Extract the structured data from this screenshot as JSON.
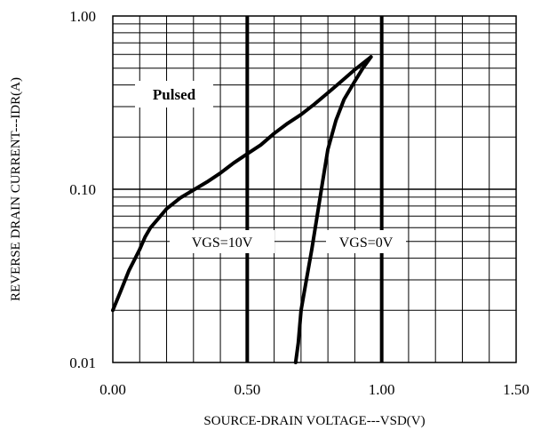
{
  "chart_data": {
    "type": "line",
    "xlabel": "SOURCE-DRAIN VOLTAGE---VSD(V)",
    "ylabel": "REVERSE DRAIN CURRENT---IDR(A)",
    "xlim": [
      0,
      1.5
    ],
    "ylim": [
      0.01,
      1.0
    ],
    "yscale": "log",
    "x_ticks": [
      "0.00",
      "0.50",
      "1.00",
      "1.50"
    ],
    "y_ticks": [
      "0.01",
      "0.10",
      "1.00"
    ],
    "grid": true,
    "series": [
      {
        "name": "VGS=10V",
        "x": [
          0.0,
          0.03,
          0.06,
          0.08,
          0.1,
          0.12,
          0.14,
          0.17,
          0.2,
          0.25,
          0.3,
          0.35,
          0.4,
          0.45,
          0.5,
          0.55,
          0.6,
          0.65,
          0.7,
          0.75,
          0.8,
          0.85,
          0.9,
          0.96
        ],
        "y": [
          0.02,
          0.026,
          0.034,
          0.039,
          0.045,
          0.053,
          0.06,
          0.068,
          0.077,
          0.089,
          0.099,
          0.11,
          0.124,
          0.142,
          0.16,
          0.18,
          0.21,
          0.24,
          0.27,
          0.31,
          0.36,
          0.42,
          0.49,
          0.58
        ]
      },
      {
        "name": "VGS=0V",
        "x": [
          0.68,
          0.69,
          0.7,
          0.72,
          0.74,
          0.76,
          0.78,
          0.8,
          0.83,
          0.86,
          0.9,
          0.93,
          0.96
        ],
        "y": [
          0.01,
          0.013,
          0.02,
          0.03,
          0.045,
          0.07,
          0.11,
          0.17,
          0.25,
          0.33,
          0.42,
          0.5,
          0.58
        ]
      }
    ],
    "annotations": [
      "Pulsed",
      "VGS=10V",
      "VGS=0V"
    ]
  }
}
